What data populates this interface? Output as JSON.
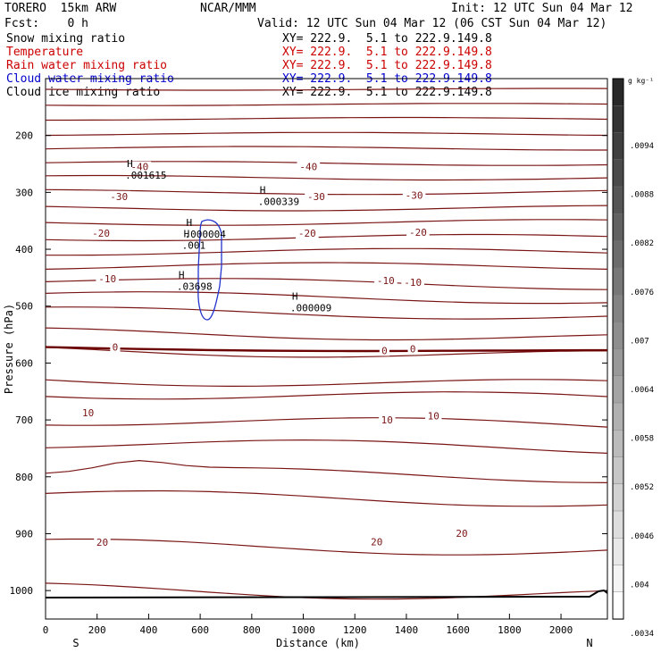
{
  "header": {
    "model": "TORERO  15km ARW",
    "org": "NCAR/MMM",
    "init": "Init: 12 UTC Sun 04 Mar 12",
    "fcst": "Fcst:    0 h",
    "valid": "Valid: 12 UTC Sun 04 Mar 12 (06 CST Sun 04 Mar 12)"
  },
  "fields": [
    {
      "name": "Snow mixing ratio",
      "xy": "XY= 222.9.  5.1 to 222.9.149.8",
      "color": "#000000"
    },
    {
      "name": "Temperature",
      "xy": "XY= 222.9.  5.1 to 222.9.149.8",
      "color": "#cc0000"
    },
    {
      "name": "Rain water mixing ratio",
      "xy": "XY= 222.9.  5.1 to 222.9.149.8",
      "color": "#cc0000"
    },
    {
      "name": "Cloud water mixing ratio",
      "xy": "XY= 222.9.  5.1 to 222.9.149.8",
      "color": "#0000cc"
    },
    {
      "name": "Cloud ice mixing ratio",
      "xy": "XY= 222.9.  5.1 to 222.9.149.8",
      "color": "#000000"
    }
  ],
  "chart_data": {
    "type": "line",
    "xlabel": "Distance (km)",
    "ylabel": "Pressure (hPa)",
    "xlim": [
      0,
      2180
    ],
    "ylim": [
      1050,
      100
    ],
    "xticks": [
      "0",
      "200",
      "400",
      "600",
      "800",
      "1000",
      "1200",
      "1400",
      "1600",
      "1800",
      "2000"
    ],
    "yticks": [
      "200",
      "300",
      "400",
      "500",
      "600",
      "700",
      "800",
      "900",
      "1000"
    ],
    "direction_left": "S",
    "direction_right": "N",
    "colorbar": {
      "unit": "g kg⁻¹",
      "labels": [
        ".0094",
        ".0088",
        ".0082",
        ".0076",
        ".007",
        ".0064",
        ".0058",
        ".0052",
        ".0046",
        ".004",
        ".0034"
      ]
    },
    "temperature_labels": [
      {
        "text": "-40",
        "x": 365,
        "p": 255
      },
      {
        "text": "-40",
        "x": 1020,
        "p": 255
      },
      {
        "text": "-30",
        "x": 285,
        "p": 307
      },
      {
        "text": "-30",
        "x": 1050,
        "p": 307
      },
      {
        "text": "-30",
        "x": 1430,
        "p": 305
      },
      {
        "text": "-20",
        "x": 215,
        "p": 372
      },
      {
        "text": "-20",
        "x": 1015,
        "p": 372
      },
      {
        "text": "-20",
        "x": 1445,
        "p": 370
      },
      {
        "text": "-10",
        "x": 240,
        "p": 452
      },
      {
        "text": "-10",
        "x": 1320,
        "p": 455
      },
      {
        "text": "-10",
        "x": 1425,
        "p": 458
      },
      {
        "text": "0",
        "x": 270,
        "p": 572
      },
      {
        "text": "0",
        "x": 1315,
        "p": 578
      },
      {
        "text": "0",
        "x": 1425,
        "p": 575
      },
      {
        "text": "10",
        "x": 165,
        "p": 687
      },
      {
        "text": "10",
        "x": 1325,
        "p": 700
      },
      {
        "text": "10",
        "x": 1505,
        "p": 693
      },
      {
        "text": "20",
        "x": 220,
        "p": 915
      },
      {
        "text": "20",
        "x": 1285,
        "p": 914
      },
      {
        "text": "20",
        "x": 1615,
        "p": 899
      }
    ],
    "max_labels": [
      {
        "mark": "H",
        "text": ".001615",
        "x": 420,
        "p": 262
      },
      {
        "mark": "H",
        "text": ".000339",
        "x": 935,
        "p": 308
      },
      {
        "mark": "H",
        "text": ".000004",
        "x": 650,
        "p": 365
      },
      {
        "mark": "H",
        "text": ".001",
        "x": 640,
        "p": 385
      },
      {
        "mark": "H",
        "text": ".03698",
        "x": 620,
        "p": 457
      },
      {
        "mark": "H",
        "text": ".000009",
        "x": 1060,
        "p": 495
      }
    ],
    "ground_pressure": 1010
  }
}
